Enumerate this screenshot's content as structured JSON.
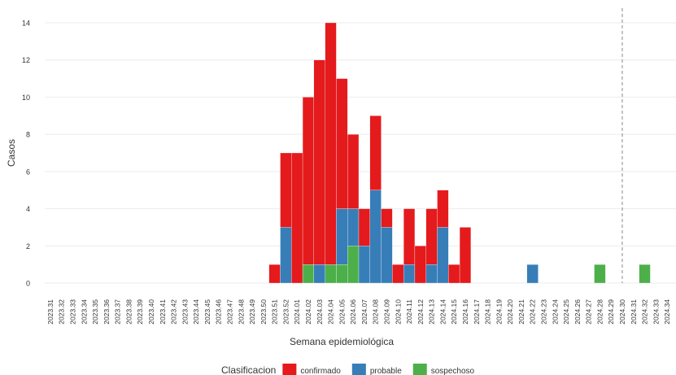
{
  "chart_data": {
    "type": "stacked_bar",
    "x_label": "Semana epidemiológica",
    "y_label": "Casos",
    "legend_title": "Clasificacion",
    "legend_position": "bottom",
    "categories": [
      "2023.31",
      "2023.32",
      "2023.33",
      "2023.34",
      "2023.35",
      "2023.36",
      "2023.37",
      "2023.38",
      "2023.39",
      "2023.40",
      "2023.41",
      "2023.42",
      "2023.43",
      "2023.44",
      "2023.45",
      "2023.46",
      "2023.47",
      "2023.48",
      "2023.49",
      "2023.50",
      "2023.51",
      "2023.52",
      "2024.01",
      "2024.02",
      "2024.03",
      "2024.04",
      "2024.05",
      "2024.06",
      "2024.07",
      "2024.08",
      "2024.09",
      "2024.10",
      "2024.11",
      "2024.12",
      "2024.13",
      "2024.14",
      "2024.15",
      "2024.16",
      "2024.17",
      "2024.18",
      "2024.19",
      "2024.20",
      "2024.21",
      "2024.22",
      "2024.23",
      "2024.24",
      "2024.25",
      "2024.26",
      "2024.27",
      "2024.28",
      "2024.29",
      "2024.30",
      "2024.31",
      "2024.32",
      "2024.33",
      "2024.34"
    ],
    "series": [
      {
        "name": "confirmado",
        "color": "#e41a1c",
        "values": [
          0,
          0,
          0,
          0,
          0,
          0,
          0,
          0,
          0,
          0,
          0,
          0,
          0,
          0,
          0,
          0,
          0,
          0,
          0,
          0,
          1,
          4,
          7,
          9,
          11,
          13,
          7,
          4,
          2,
          4,
          1,
          1,
          3,
          2,
          3,
          2,
          1,
          3,
          0,
          0,
          0,
          0,
          0,
          0,
          0,
          0,
          0,
          0,
          0,
          0,
          0,
          0,
          0,
          0,
          0,
          0
        ]
      },
      {
        "name": "probable",
        "color": "#377eb8",
        "values": [
          0,
          0,
          0,
          0,
          0,
          0,
          0,
          0,
          0,
          0,
          0,
          0,
          0,
          0,
          0,
          0,
          0,
          0,
          0,
          0,
          0,
          3,
          0,
          0,
          1,
          0,
          3,
          2,
          2,
          5,
          3,
          0,
          1,
          0,
          1,
          3,
          0,
          0,
          0,
          0,
          0,
          0,
          0,
          1,
          0,
          0,
          0,
          0,
          0,
          0,
          0,
          0,
          0,
          0,
          0,
          0
        ]
      },
      {
        "name": "sospechoso",
        "color": "#4daf4a",
        "values": [
          0,
          0,
          0,
          0,
          0,
          0,
          0,
          0,
          0,
          0,
          0,
          0,
          0,
          0,
          0,
          0,
          0,
          0,
          0,
          0,
          0,
          0,
          0,
          1,
          0,
          1,
          1,
          2,
          0,
          0,
          0,
          0,
          0,
          0,
          0,
          0,
          0,
          0,
          0,
          0,
          0,
          0,
          0,
          0,
          0,
          0,
          0,
          0,
          0,
          1,
          0,
          0,
          0,
          1,
          0,
          0
        ]
      }
    ],
    "reference_line": "2024.30",
    "ylim": [
      -0.7,
      14.7
    ],
    "yticks": [
      0,
      2,
      4,
      6,
      8,
      10,
      12,
      14
    ],
    "grid": true
  }
}
